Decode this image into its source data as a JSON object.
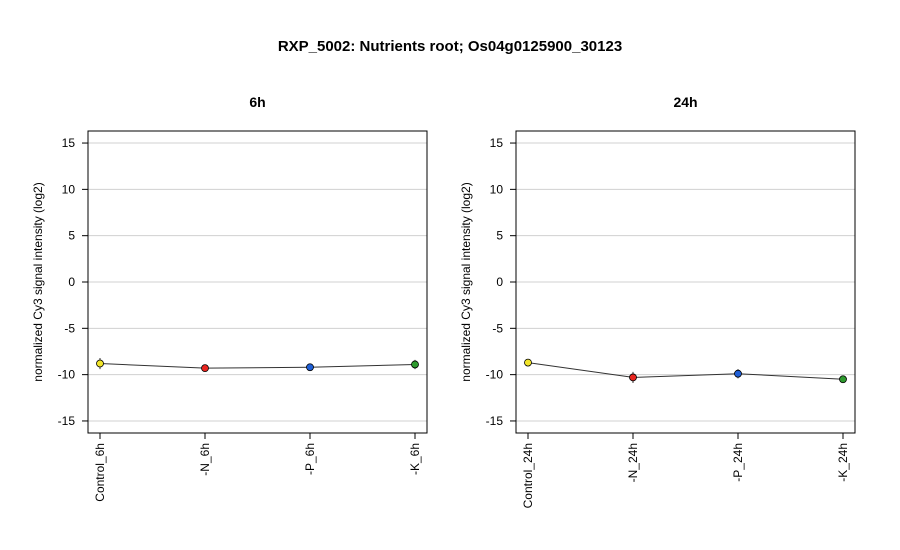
{
  "title": "RXP_5002: Nutrients root; Os04g0125900_30123",
  "chart_data": [
    {
      "type": "line",
      "title": "6h",
      "ylabel": "normalized Cy3 signal intensity (log2)",
      "ylim": [
        -16.3,
        16.3
      ],
      "yticks": [
        15,
        10,
        5,
        0,
        -5,
        -10,
        -15
      ],
      "grid": true,
      "categories": [
        "Control_6h",
        "-N_6h",
        "-P_6h",
        "-K_6h"
      ],
      "values": [
        -8.8,
        -9.3,
        -9.2,
        -8.9
      ],
      "errors": [
        0.6,
        0.2,
        0.4,
        0.5
      ],
      "point_colors": [
        "#f2e52a",
        "#e8251f",
        "#1f5fd6",
        "#2e9a2e"
      ]
    },
    {
      "type": "line",
      "title": "24h",
      "ylabel": "normalized Cy3 signal intensity (log2)",
      "ylim": [
        -16.3,
        16.3
      ],
      "yticks": [
        15,
        10,
        5,
        0,
        -5,
        -10,
        -15
      ],
      "grid": true,
      "categories": [
        "Control_24h",
        "-N_24h",
        "-P_24h",
        "-K_24h"
      ],
      "values": [
        -8.7,
        -10.3,
        -9.9,
        -10.5
      ],
      "errors": [
        0.3,
        0.6,
        0.5,
        0.2
      ],
      "point_colors": [
        "#f2e52a",
        "#e8251f",
        "#1f5fd6",
        "#2e9a2e"
      ]
    }
  ]
}
